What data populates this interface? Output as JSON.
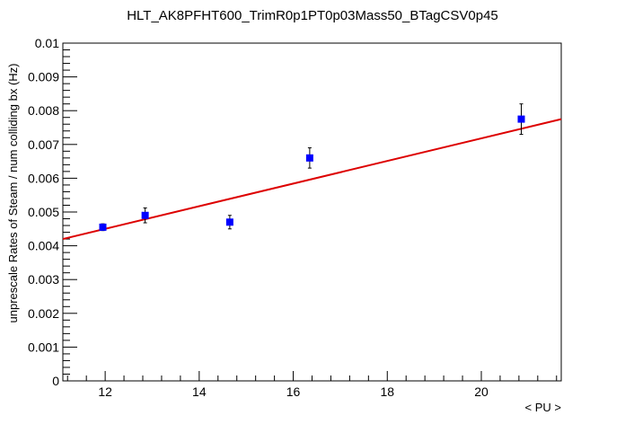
{
  "chart_data": {
    "type": "scatter",
    "title": "HLT_AK8PFHT600_TrimR0p1PT0p03Mass50_BTagCSV0p45",
    "xlabel": "< PU >",
    "ylabel": "unprescale Rates of Steam / num colliding bx (Hz)",
    "xlim": [
      11.1,
      21.7
    ],
    "ylim": [
      0,
      0.01
    ],
    "x_ticks": [
      {
        "value": 12,
        "label": "12"
      },
      {
        "value": 14,
        "label": "14"
      },
      {
        "value": 16,
        "label": "16"
      },
      {
        "value": 18,
        "label": "18"
      },
      {
        "value": 20,
        "label": "20"
      }
    ],
    "y_ticks": [
      {
        "value": 0,
        "label": "0"
      },
      {
        "value": 0.001,
        "label": "0.001"
      },
      {
        "value": 0.002,
        "label": "0.002"
      },
      {
        "value": 0.003,
        "label": "0.003"
      },
      {
        "value": 0.004,
        "label": "0.004"
      },
      {
        "value": 0.005,
        "label": "0.005"
      },
      {
        "value": 0.006,
        "label": "0.006"
      },
      {
        "value": 0.007,
        "label": "0.007"
      },
      {
        "value": 0.008,
        "label": "0.008"
      },
      {
        "value": 0.009,
        "label": "0.009"
      },
      {
        "value": 0.01,
        "label": "0.01"
      }
    ],
    "grid": false,
    "series": [
      {
        "type": "scatter",
        "color": "#0000ff",
        "points": [
          {
            "x": 11.95,
            "y": 0.00455,
            "err": 0.0001
          },
          {
            "x": 12.85,
            "y": 0.0049,
            "err": 0.00022
          },
          {
            "x": 14.65,
            "y": 0.0047,
            "err": 0.0002
          },
          {
            "x": 16.35,
            "y": 0.0066,
            "err": 0.0003
          },
          {
            "x": 20.85,
            "y": 0.00775,
            "err": 0.00045
          }
        ]
      },
      {
        "type": "line",
        "color": "#dd0000",
        "x": [
          11.1,
          21.7
        ],
        "y": [
          0.0042,
          0.00775
        ]
      }
    ]
  }
}
